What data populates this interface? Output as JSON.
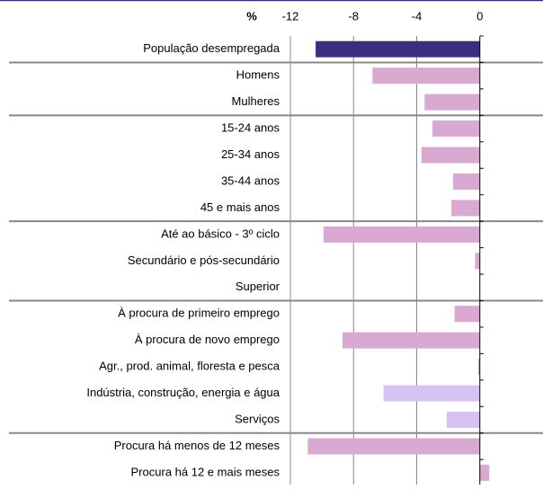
{
  "chart_data": {
    "type": "hbar",
    "x_label": "%",
    "categories": [
      "População desempregada",
      "Homens",
      "Mulheres",
      "15-24 anos",
      "25-34 anos",
      "35-44 anos",
      "45 e mais anos",
      "Até ao básico - 3º ciclo",
      "Secundário e pós-secundário",
      "Superior",
      "À procura de primeiro emprego",
      "À procura de novo emprego",
      "Agr., prod. animal, floresta e pesca",
      "Indústria, construção, energia e água",
      "Serviços",
      "Procura há menos de 12 meses",
      "Procura há 12 e mais meses"
    ],
    "values": [
      -10.4,
      -6.8,
      -3.5,
      -3.0,
      -3.7,
      -1.7,
      -1.8,
      -9.9,
      -0.3,
      0,
      -1.6,
      -8.7,
      -0.1,
      -6.1,
      -2.1,
      -10.9,
      0.6
    ],
    "colors": [
      "#3a2f7c",
      "#d9a9d1",
      "#d9a9d1",
      "#d9a9d1",
      "#d9a9d1",
      "#d9a9d1",
      "#d9a9d1",
      "#d9a9d1",
      "#d9a9d1",
      "#d9a9d1",
      "#d9a9d1",
      "#d9a9d1",
      "#d9a9d1",
      "#d6c3f4",
      "#d6c3f4",
      "#d9a9d1",
      "#d9a9d1"
    ],
    "xlim": [
      -12,
      4
    ],
    "xticks": [
      -12,
      -8,
      -4,
      0
    ],
    "grid": true
  }
}
